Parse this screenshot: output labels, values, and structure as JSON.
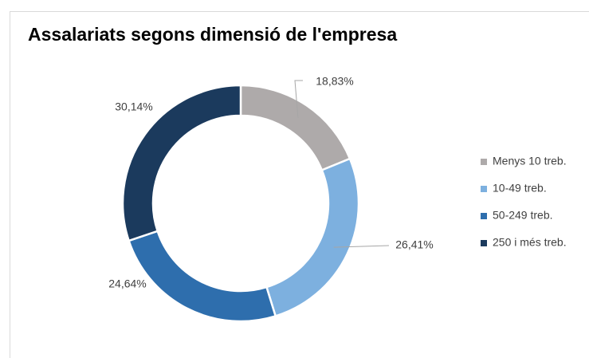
{
  "chart_data": {
    "type": "pie",
    "title": "Assalariats segons dimensió de l'empresa",
    "categories": [
      "Menys 10 treb.",
      "10-49 treb.",
      "50-249 treb.",
      "250 i més treb."
    ],
    "values": [
      18.83,
      26.41,
      24.64,
      30.14
    ],
    "value_labels": [
      "18,83%",
      "26,41%",
      "24,64%",
      "30,14%"
    ],
    "colors": [
      "#aeaaaa",
      "#7db0df",
      "#2e6ead",
      "#1b3a5d"
    ],
    "donut": true,
    "legend": "right"
  }
}
